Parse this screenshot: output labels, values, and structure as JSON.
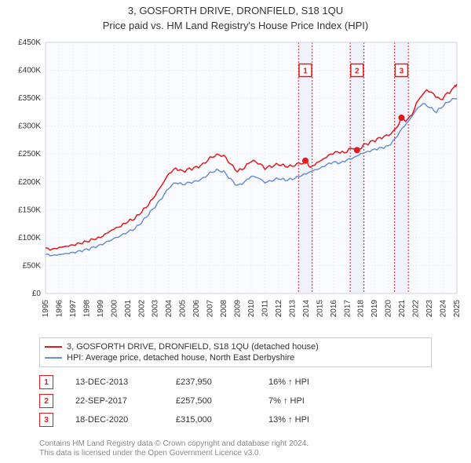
{
  "title": "3, GOSFORTH DRIVE, DRONFIELD, S18 1QU",
  "subtitle": "Price paid vs. HM Land Registry's House Price Index (HPI)",
  "chart": {
    "type": "line",
    "background_color": "#ffffff",
    "plot_background_color": "#fafbff",
    "grid_color": "#e6e8f0",
    "grid_dash": "1 3",
    "axis_color": "#cfd2dc",
    "y": {
      "label_prefix": "£",
      "label_suffix": "K",
      "min": 0,
      "max": 450,
      "tick_step": 50
    },
    "x": {
      "years_start": 1995,
      "years_end": 2025,
      "tick_step": 1
    },
    "series": [
      {
        "name": "property",
        "label": "3, GOSFORTH DRIVE, DRONFIELD, S18 1QU (detached house)",
        "color": "#e31a1c",
        "line_width": 1.5,
        "data": [
          {
            "x": 1995.0,
            "y": 82
          },
          {
            "x": 1995.5,
            "y": 80
          },
          {
            "x": 1996.0,
            "y": 83
          },
          {
            "x": 1996.5,
            "y": 85
          },
          {
            "x": 1997.0,
            "y": 87
          },
          {
            "x": 1997.5,
            "y": 90
          },
          {
            "x": 1998.0,
            "y": 93
          },
          {
            "x": 1998.5,
            "y": 97
          },
          {
            "x": 1999.0,
            "y": 100
          },
          {
            "x": 1999.5,
            "y": 108
          },
          {
            "x": 2000.0,
            "y": 115
          },
          {
            "x": 2000.5,
            "y": 120
          },
          {
            "x": 2001.0,
            "y": 128
          },
          {
            "x": 2001.5,
            "y": 133
          },
          {
            "x": 2002.0,
            "y": 145
          },
          {
            "x": 2002.5,
            "y": 158
          },
          {
            "x": 2003.0,
            "y": 175
          },
          {
            "x": 2003.5,
            "y": 195
          },
          {
            "x": 2004.0,
            "y": 215
          },
          {
            "x": 2004.5,
            "y": 225
          },
          {
            "x": 2005.0,
            "y": 220
          },
          {
            "x": 2005.5,
            "y": 225
          },
          {
            "x": 2006.0,
            "y": 228
          },
          {
            "x": 2006.5,
            "y": 234
          },
          {
            "x": 2007.0,
            "y": 245
          },
          {
            "x": 2007.5,
            "y": 250
          },
          {
            "x": 2008.0,
            "y": 248
          },
          {
            "x": 2008.5,
            "y": 232
          },
          {
            "x": 2009.0,
            "y": 218
          },
          {
            "x": 2009.5,
            "y": 224
          },
          {
            "x": 2010.0,
            "y": 236
          },
          {
            "x": 2010.5,
            "y": 232
          },
          {
            "x": 2011.0,
            "y": 222
          },
          {
            "x": 2011.5,
            "y": 226
          },
          {
            "x": 2012.0,
            "y": 230
          },
          {
            "x": 2012.5,
            "y": 227
          },
          {
            "x": 2013.0,
            "y": 228
          },
          {
            "x": 2013.5,
            "y": 234
          },
          {
            "x": 2013.95,
            "y": 238
          },
          {
            "x": 2014.3,
            "y": 226
          },
          {
            "x": 2014.8,
            "y": 235
          },
          {
            "x": 2015.3,
            "y": 242
          },
          {
            "x": 2015.8,
            "y": 250
          },
          {
            "x": 2016.3,
            "y": 254
          },
          {
            "x": 2016.8,
            "y": 252
          },
          {
            "x": 2017.3,
            "y": 260
          },
          {
            "x": 2017.72,
            "y": 257
          },
          {
            "x": 2018.2,
            "y": 268
          },
          {
            "x": 2018.7,
            "y": 273
          },
          {
            "x": 2019.2,
            "y": 278
          },
          {
            "x": 2019.7,
            "y": 282
          },
          {
            "x": 2020.2,
            "y": 286
          },
          {
            "x": 2020.7,
            "y": 300
          },
          {
            "x": 2020.96,
            "y": 315
          },
          {
            "x": 2021.4,
            "y": 312
          },
          {
            "x": 2021.9,
            "y": 330
          },
          {
            "x": 2022.3,
            "y": 350
          },
          {
            "x": 2022.8,
            "y": 365
          },
          {
            "x": 2023.3,
            "y": 358
          },
          {
            "x": 2023.8,
            "y": 348
          },
          {
            "x": 2024.3,
            "y": 360
          },
          {
            "x": 2024.8,
            "y": 370
          },
          {
            "x": 2025.0,
            "y": 375
          }
        ]
      },
      {
        "name": "hpi",
        "label": "HPI: Average price, detached house, North East Derbyshire",
        "color": "#6b8fd4",
        "line_width": 1.5,
        "data": [
          {
            "x": 1995.0,
            "y": 70
          },
          {
            "x": 1995.5,
            "y": 68
          },
          {
            "x": 1996.0,
            "y": 70
          },
          {
            "x": 1996.5,
            "y": 72
          },
          {
            "x": 1997.0,
            "y": 74
          },
          {
            "x": 1997.5,
            "y": 77
          },
          {
            "x": 1998.0,
            "y": 80
          },
          {
            "x": 1998.5,
            "y": 84
          },
          {
            "x": 1999.0,
            "y": 88
          },
          {
            "x": 1999.5,
            "y": 94
          },
          {
            "x": 2000.0,
            "y": 99
          },
          {
            "x": 2000.5,
            "y": 104
          },
          {
            "x": 2001.0,
            "y": 110
          },
          {
            "x": 2001.5,
            "y": 115
          },
          {
            "x": 2002.0,
            "y": 126
          },
          {
            "x": 2002.5,
            "y": 140
          },
          {
            "x": 2003.0,
            "y": 154
          },
          {
            "x": 2003.5,
            "y": 170
          },
          {
            "x": 2004.0,
            "y": 188
          },
          {
            "x": 2004.5,
            "y": 198
          },
          {
            "x": 2005.0,
            "y": 195
          },
          {
            "x": 2005.5,
            "y": 199
          },
          {
            "x": 2006.0,
            "y": 202
          },
          {
            "x": 2006.5,
            "y": 208
          },
          {
            "x": 2007.0,
            "y": 218
          },
          {
            "x": 2007.5,
            "y": 223
          },
          {
            "x": 2008.0,
            "y": 220
          },
          {
            "x": 2008.5,
            "y": 206
          },
          {
            "x": 2009.0,
            "y": 194
          },
          {
            "x": 2009.5,
            "y": 200
          },
          {
            "x": 2010.0,
            "y": 210
          },
          {
            "x": 2010.5,
            "y": 207
          },
          {
            "x": 2011.0,
            "y": 198
          },
          {
            "x": 2011.5,
            "y": 201
          },
          {
            "x": 2012.0,
            "y": 205
          },
          {
            "x": 2012.5,
            "y": 202
          },
          {
            "x": 2013.0,
            "y": 204
          },
          {
            "x": 2013.5,
            "y": 209
          },
          {
            "x": 2014.0,
            "y": 214
          },
          {
            "x": 2014.5,
            "y": 220
          },
          {
            "x": 2015.0,
            "y": 224
          },
          {
            "x": 2015.5,
            "y": 231
          },
          {
            "x": 2016.0,
            "y": 236
          },
          {
            "x": 2016.5,
            "y": 234
          },
          {
            "x": 2017.0,
            "y": 240
          },
          {
            "x": 2017.5,
            "y": 244
          },
          {
            "x": 2018.0,
            "y": 251
          },
          {
            "x": 2018.5,
            "y": 255
          },
          {
            "x": 2019.0,
            "y": 259
          },
          {
            "x": 2019.5,
            "y": 262
          },
          {
            "x": 2020.0,
            "y": 265
          },
          {
            "x": 2020.5,
            "y": 278
          },
          {
            "x": 2021.0,
            "y": 296
          },
          {
            "x": 2021.5,
            "y": 310
          },
          {
            "x": 2022.0,
            "y": 328
          },
          {
            "x": 2022.5,
            "y": 340
          },
          {
            "x": 2023.0,
            "y": 333
          },
          {
            "x": 2023.5,
            "y": 324
          },
          {
            "x": 2024.0,
            "y": 335
          },
          {
            "x": 2024.5,
            "y": 344
          },
          {
            "x": 2025.0,
            "y": 349
          }
        ]
      }
    ],
    "sale_markers": {
      "color": "#e31a1c",
      "radius": 4,
      "points": [
        {
          "n": "1",
          "x": 2013.95,
          "y": 238
        },
        {
          "n": "2",
          "x": 2017.72,
          "y": 257
        },
        {
          "n": "3",
          "x": 2020.96,
          "y": 315
        }
      ],
      "callout_band_color": "#eef1fb",
      "callout_border_color": "#e31a1c",
      "callout_border_dash": "2 2",
      "callout_badge_y_value": 400
    }
  },
  "legend": {
    "items": [
      {
        "color": "#e31a1c",
        "label": "3, GOSFORTH DRIVE, DRONFIELD, S18 1QU (detached house)"
      },
      {
        "color": "#6b8fd4",
        "label": "HPI: Average price, detached house, North East Derbyshire"
      }
    ]
  },
  "sales": [
    {
      "n": "1",
      "date": "13-DEC-2013",
      "price": "£237,950",
      "hpi": "16% ↑ HPI"
    },
    {
      "n": "2",
      "date": "22-SEP-2017",
      "price": "£257,500",
      "hpi": "7% ↑ HPI"
    },
    {
      "n": "3",
      "date": "18-DEC-2020",
      "price": "£315,000",
      "hpi": "13% ↑ HPI"
    }
  ],
  "attribution": {
    "line1": "Contains HM Land Registry data © Crown copyright and database right 2024.",
    "line2": "This data is licensed under the Open Government Licence v3.0."
  }
}
